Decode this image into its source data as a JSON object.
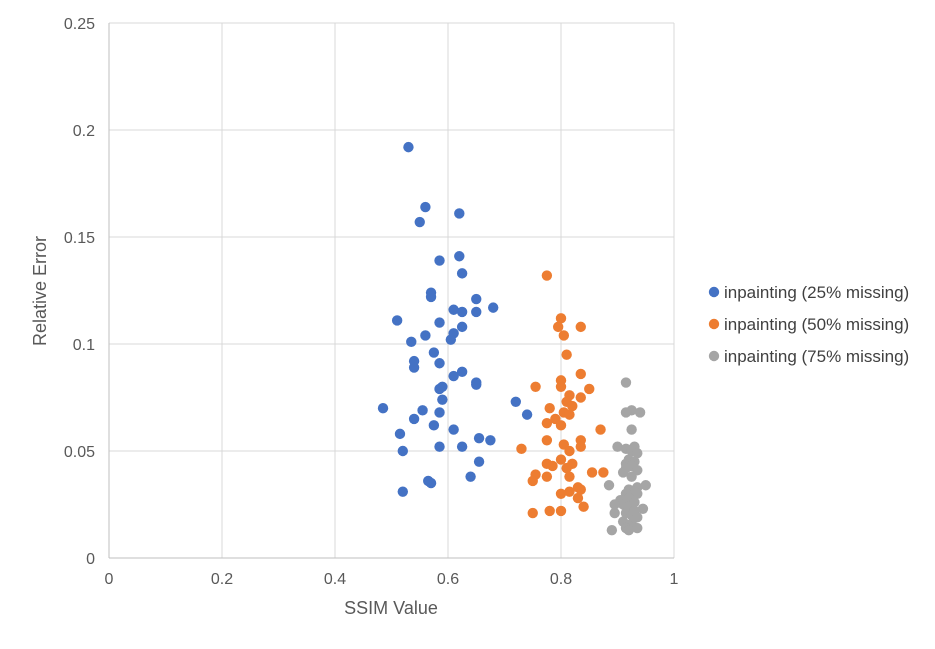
{
  "chart_data": {
    "type": "scatter",
    "title": "",
    "xlabel": "SSIM Value",
    "ylabel": "Relative Error",
    "xlim": [
      0,
      1
    ],
    "ylim": [
      0,
      0.25
    ],
    "xticks": [
      0,
      0.2,
      0.4,
      0.6,
      0.8,
      1
    ],
    "xtick_labels": [
      "0",
      "0.2",
      "0.4",
      "0.6",
      "0.8",
      "1"
    ],
    "yticks": [
      0,
      0.05,
      0.1,
      0.15,
      0.2,
      0.25
    ],
    "ytick_labels": [
      "0",
      "0.05",
      "0.1",
      "0.15",
      "0.2",
      "0.25"
    ],
    "grid": true,
    "legend_position": "right",
    "series": [
      {
        "name": "inpainting (25% missing)",
        "color": "#4472C4",
        "points": [
          [
            0.53,
            0.192
          ],
          [
            0.56,
            0.164
          ],
          [
            0.55,
            0.157
          ],
          [
            0.62,
            0.161
          ],
          [
            0.62,
            0.141
          ],
          [
            0.585,
            0.139
          ],
          [
            0.625,
            0.133
          ],
          [
            0.57,
            0.124
          ],
          [
            0.57,
            0.122
          ],
          [
            0.65,
            0.121
          ],
          [
            0.68,
            0.117
          ],
          [
            0.61,
            0.116
          ],
          [
            0.625,
            0.115
          ],
          [
            0.65,
            0.115
          ],
          [
            0.51,
            0.111
          ],
          [
            0.585,
            0.11
          ],
          [
            0.625,
            0.108
          ],
          [
            0.61,
            0.105
          ],
          [
            0.56,
            0.104
          ],
          [
            0.605,
            0.102
          ],
          [
            0.535,
            0.101
          ],
          [
            0.575,
            0.096
          ],
          [
            0.54,
            0.092
          ],
          [
            0.585,
            0.091
          ],
          [
            0.54,
            0.089
          ],
          [
            0.625,
            0.087
          ],
          [
            0.61,
            0.085
          ],
          [
            0.65,
            0.082
          ],
          [
            0.65,
            0.081
          ],
          [
            0.59,
            0.08
          ],
          [
            0.585,
            0.079
          ],
          [
            0.59,
            0.074
          ],
          [
            0.485,
            0.07
          ],
          [
            0.555,
            0.069
          ],
          [
            0.585,
            0.068
          ],
          [
            0.54,
            0.065
          ],
          [
            0.575,
            0.062
          ],
          [
            0.61,
            0.06
          ],
          [
            0.515,
            0.058
          ],
          [
            0.655,
            0.056
          ],
          [
            0.675,
            0.055
          ],
          [
            0.625,
            0.052
          ],
          [
            0.585,
            0.052
          ],
          [
            0.52,
            0.05
          ],
          [
            0.655,
            0.045
          ],
          [
            0.64,
            0.038
          ],
          [
            0.565,
            0.036
          ],
          [
            0.57,
            0.035
          ],
          [
            0.52,
            0.031
          ],
          [
            0.72,
            0.073
          ],
          [
            0.74,
            0.067
          ]
        ]
      },
      {
        "name": "inpainting (50% missing)",
        "color": "#ED7D31",
        "points": [
          [
            0.775,
            0.132
          ],
          [
            0.8,
            0.112
          ],
          [
            0.795,
            0.108
          ],
          [
            0.835,
            0.108
          ],
          [
            0.805,
            0.104
          ],
          [
            0.81,
            0.095
          ],
          [
            0.835,
            0.086
          ],
          [
            0.8,
            0.083
          ],
          [
            0.8,
            0.08
          ],
          [
            0.755,
            0.08
          ],
          [
            0.85,
            0.079
          ],
          [
            0.815,
            0.076
          ],
          [
            0.835,
            0.075
          ],
          [
            0.81,
            0.073
          ],
          [
            0.82,
            0.071
          ],
          [
            0.78,
            0.07
          ],
          [
            0.805,
            0.068
          ],
          [
            0.815,
            0.067
          ],
          [
            0.79,
            0.065
          ],
          [
            0.775,
            0.063
          ],
          [
            0.8,
            0.062
          ],
          [
            0.87,
            0.06
          ],
          [
            0.775,
            0.055
          ],
          [
            0.835,
            0.055
          ],
          [
            0.805,
            0.053
          ],
          [
            0.835,
            0.052
          ],
          [
            0.73,
            0.051
          ],
          [
            0.815,
            0.05
          ],
          [
            0.8,
            0.046
          ],
          [
            0.775,
            0.044
          ],
          [
            0.82,
            0.044
          ],
          [
            0.785,
            0.043
          ],
          [
            0.81,
            0.042
          ],
          [
            0.855,
            0.04
          ],
          [
            0.875,
            0.04
          ],
          [
            0.755,
            0.039
          ],
          [
            0.775,
            0.038
          ],
          [
            0.815,
            0.038
          ],
          [
            0.75,
            0.036
          ],
          [
            0.83,
            0.033
          ],
          [
            0.835,
            0.032
          ],
          [
            0.815,
            0.031
          ],
          [
            0.8,
            0.03
          ],
          [
            0.83,
            0.028
          ],
          [
            0.84,
            0.024
          ],
          [
            0.78,
            0.022
          ],
          [
            0.8,
            0.022
          ],
          [
            0.75,
            0.021
          ]
        ]
      },
      {
        "name": "inpainting (75% missing)",
        "color": "#A5A5A5",
        "points": [
          [
            0.915,
            0.082
          ],
          [
            0.925,
            0.069
          ],
          [
            0.915,
            0.068
          ],
          [
            0.94,
            0.068
          ],
          [
            0.925,
            0.06
          ],
          [
            0.93,
            0.052
          ],
          [
            0.9,
            0.052
          ],
          [
            0.915,
            0.051
          ],
          [
            0.925,
            0.05
          ],
          [
            0.935,
            0.049
          ],
          [
            0.92,
            0.046
          ],
          [
            0.93,
            0.045
          ],
          [
            0.915,
            0.044
          ],
          [
            0.925,
            0.043
          ],
          [
            0.915,
            0.042
          ],
          [
            0.935,
            0.041
          ],
          [
            0.91,
            0.04
          ],
          [
            0.925,
            0.038
          ],
          [
            0.885,
            0.034
          ],
          [
            0.95,
            0.034
          ],
          [
            0.935,
            0.033
          ],
          [
            0.92,
            0.032
          ],
          [
            0.93,
            0.031
          ],
          [
            0.915,
            0.03
          ],
          [
            0.935,
            0.03
          ],
          [
            0.92,
            0.028
          ],
          [
            0.905,
            0.027
          ],
          [
            0.93,
            0.026
          ],
          [
            0.91,
            0.025
          ],
          [
            0.895,
            0.025
          ],
          [
            0.92,
            0.024
          ],
          [
            0.945,
            0.023
          ],
          [
            0.93,
            0.022
          ],
          [
            0.915,
            0.021
          ],
          [
            0.895,
            0.021
          ],
          [
            0.925,
            0.02
          ],
          [
            0.935,
            0.019
          ],
          [
            0.91,
            0.017
          ],
          [
            0.925,
            0.016
          ],
          [
            0.92,
            0.015
          ],
          [
            0.935,
            0.014
          ],
          [
            0.915,
            0.014
          ],
          [
            0.89,
            0.013
          ],
          [
            0.92,
            0.013
          ]
        ]
      }
    ]
  }
}
